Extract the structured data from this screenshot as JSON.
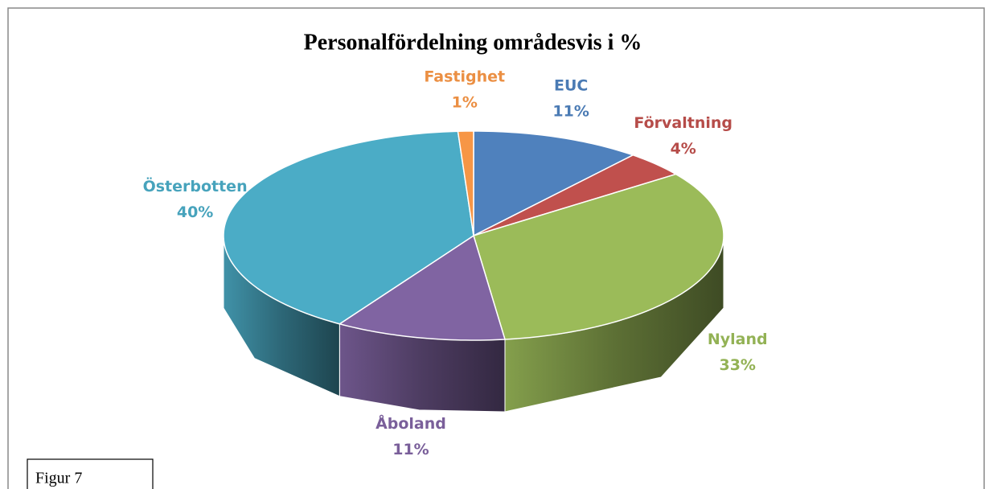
{
  "chart_data": {
    "type": "pie3d",
    "title": "Personalfördelning områdesvis i %",
    "categories": [
      "EUC",
      "Förvaltning",
      "Nyland",
      "Åboland",
      "Österbotten",
      "Fastighet"
    ],
    "values": [
      11,
      4,
      33,
      11,
      40,
      1
    ],
    "value_labels": [
      "11%",
      "4%",
      "33%",
      "11%",
      "40%",
      "1%"
    ],
    "colors": [
      "#4f81bd",
      "#c0504d",
      "#9bbb59",
      "#8064a2",
      "#4bacc6",
      "#f79646"
    ],
    "annotation": "Figur 7"
  }
}
